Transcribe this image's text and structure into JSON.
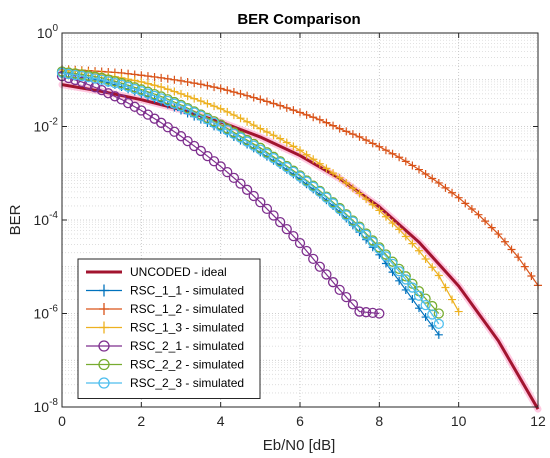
{
  "chart_data": {
    "type": "line",
    "title": "BER Comparison",
    "xlabel": "Eb/N0 [dB]",
    "ylabel": "BER",
    "xlim": [
      0,
      12
    ],
    "ylim": [
      1e-08,
      1
    ],
    "yscale": "log",
    "xticks": [
      "0",
      "2",
      "4",
      "6",
      "8",
      "10",
      "12"
    ],
    "yticks": [
      {
        "base": "10",
        "exp": "0",
        "value": 1
      },
      {
        "base": "10",
        "exp": "-2",
        "value": 0.01
      },
      {
        "base": "10",
        "exp": "-4",
        "value": 0.0001
      },
      {
        "base": "10",
        "exp": "-6",
        "value": 1e-06
      },
      {
        "base": "10",
        "exp": "-8",
        "value": 1e-08
      }
    ],
    "grid": true,
    "minor_grid": true,
    "legend_position": "lower-left",
    "series": [
      {
        "name": "UNCODED - ideal",
        "color": "#A2142F",
        "marker": "none",
        "x": [
          0,
          1,
          2,
          3,
          4,
          5,
          6,
          7,
          8,
          9,
          10,
          11,
          12
        ],
        "y": [
          0.0786,
          0.0563,
          0.0375,
          0.0229,
          0.0125,
          0.00595,
          0.00239,
          0.000773,
          0.000191,
          3.36e-05,
          3.87e-06,
          2.61e-07,
          9e-09
        ]
      },
      {
        "name": "RSC_1_1 - simulated",
        "color": "#0072BD",
        "marker": "plus",
        "x": [
          0,
          0.5,
          1,
          1.5,
          2,
          2.5,
          3,
          3.5,
          4,
          4.5,
          5,
          5.5,
          6,
          6.5,
          7,
          7.5,
          8,
          8.5,
          9,
          9.5
        ],
        "y": [
          0.14,
          0.12,
          0.095,
          0.07,
          0.05,
          0.034,
          0.022,
          0.014,
          0.0085,
          0.005,
          0.0028,
          0.0015,
          0.00075,
          0.00035,
          0.00015,
          5.5e-05,
          1.8e-05,
          5e-06,
          1.3e-06,
          3.5e-07
        ]
      },
      {
        "name": "RSC_1_2 - simulated",
        "color": "#D95319",
        "marker": "plus",
        "x": [
          0,
          0.5,
          1,
          1.5,
          2,
          2.5,
          3,
          3.5,
          4,
          4.5,
          5,
          5.5,
          6,
          6.5,
          7,
          7.5,
          8,
          8.5,
          9,
          9.5,
          10,
          10.5,
          11,
          11.5,
          12
        ],
        "y": [
          0.17,
          0.16,
          0.15,
          0.14,
          0.125,
          0.11,
          0.095,
          0.08,
          0.065,
          0.05,
          0.038,
          0.028,
          0.02,
          0.014,
          0.009,
          0.006,
          0.0037,
          0.0022,
          0.0012,
          0.00062,
          0.0003,
          0.00013,
          5e-05,
          1.6e-05,
          4e-06
        ]
      },
      {
        "name": "RSC_1_3 - simulated",
        "color": "#EDB120",
        "marker": "plus",
        "x": [
          0,
          0.5,
          1,
          1.5,
          2,
          2.5,
          3,
          3.5,
          4,
          4.5,
          5,
          5.5,
          6,
          6.5,
          7,
          7.5,
          8,
          8.5,
          9,
          9.5,
          10
        ],
        "y": [
          0.16,
          0.15,
          0.13,
          0.11,
          0.09,
          0.07,
          0.05,
          0.035,
          0.024,
          0.015,
          0.009,
          0.0055,
          0.0031,
          0.0016,
          0.0008,
          0.00037,
          0.00016,
          6.3e-05,
          2.2e-05,
          6.5e-06,
          1.1e-06
        ]
      },
      {
        "name": "RSC_2_1 - simulated",
        "color": "#7E2F8E",
        "marker": "circle",
        "x": [
          0,
          0.5,
          1,
          1.5,
          2,
          2.5,
          3,
          3.5,
          4,
          4.5,
          5,
          5.5,
          6,
          6.5,
          7,
          7.5,
          8
        ],
        "y": [
          0.12,
          0.09,
          0.06,
          0.038,
          0.022,
          0.012,
          0.0062,
          0.003,
          0.0014,
          0.0006,
          0.00024,
          9e-05,
          3.2e-05,
          1e-05,
          3.2e-06,
          1.1e-06,
          1e-06
        ]
      },
      {
        "name": "RSC_2_2 - simulated",
        "color": "#77AC30",
        "marker": "circle",
        "x": [
          0,
          0.5,
          1,
          1.5,
          2,
          2.5,
          3,
          3.5,
          4,
          4.5,
          5,
          5.5,
          6,
          6.5,
          7,
          7.5,
          8,
          8.5,
          9,
          9.5
        ],
        "y": [
          0.15,
          0.13,
          0.11,
          0.085,
          0.062,
          0.044,
          0.029,
          0.018,
          0.011,
          0.0062,
          0.0035,
          0.0018,
          0.0009,
          0.00042,
          0.00018,
          7.2e-05,
          2.6e-05,
          9e-06,
          3e-06,
          1e-06
        ]
      },
      {
        "name": "RSC_2_3 - simulated",
        "color": "#4DBEEE",
        "marker": "circle",
        "x": [
          0,
          0.5,
          1,
          1.5,
          2,
          2.5,
          3,
          3.5,
          4,
          4.5,
          5,
          5.5,
          6,
          6.5,
          7,
          7.5,
          8,
          8.5,
          9,
          9.5
        ],
        "y": [
          0.14,
          0.12,
          0.1,
          0.078,
          0.057,
          0.04,
          0.027,
          0.017,
          0.01,
          0.0058,
          0.0032,
          0.0017,
          0.00085,
          0.0004,
          0.00017,
          6.8e-05,
          2.4e-05,
          8e-06,
          2.4e-06,
          6e-07
        ]
      }
    ]
  }
}
